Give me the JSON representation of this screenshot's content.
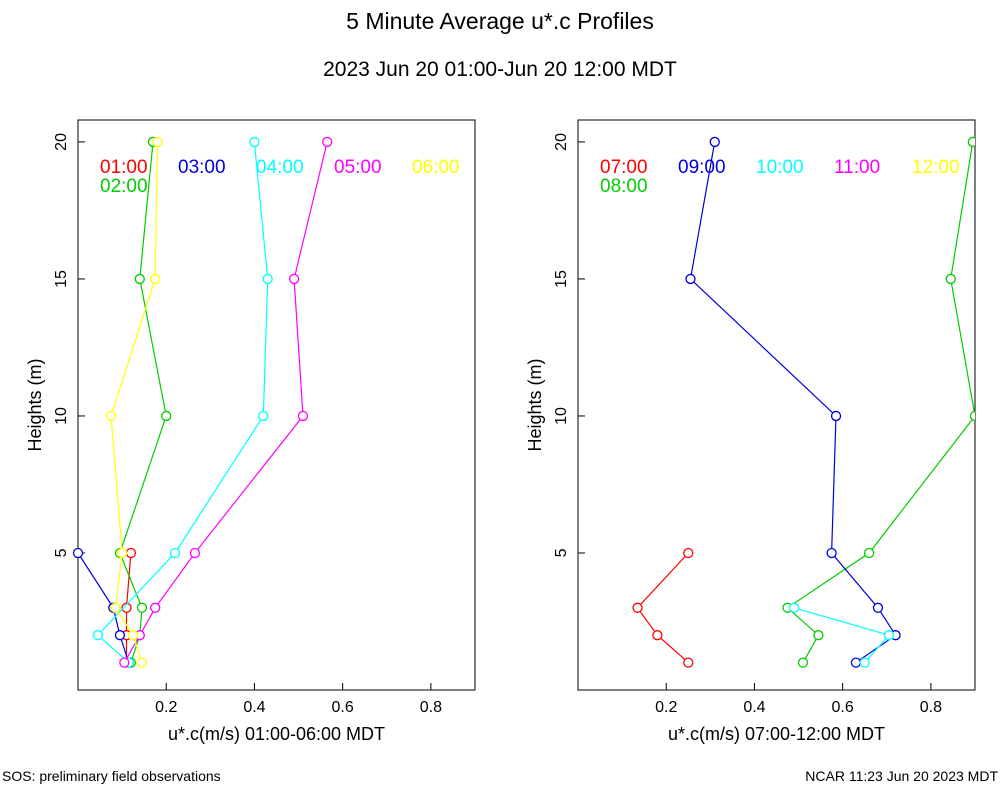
{
  "title": "5 Minute Average u*.c Profiles",
  "subtitle": "2023 Jun 20 01:00-Jun 20 12:00 MDT",
  "footer_left": "SOS: preliminary field observations",
  "footer_right": "NCAR 11:23 Jun 20 2023 MDT",
  "colors": {
    "red": "#ff0000",
    "green": "#00cc00",
    "blue": "#0000dd",
    "cyan": "#00ffff",
    "magenta": "#ff00ff",
    "yellow": "#ffff00"
  },
  "chart_data": [
    {
      "type": "line",
      "xlabel": "u*.c(m/s) 01:00-06:00 MDT",
      "ylabel": "Heights (m)",
      "xlim": [
        0,
        0.9
      ],
      "ylim": [
        0,
        20.8
      ],
      "xticks": [
        0.2,
        0.4,
        0.6,
        0.8
      ],
      "xtick_labels": [
        "0.2",
        "0.4",
        "0.6",
        "0.8"
      ],
      "yticks": [
        5,
        10,
        15,
        20
      ],
      "ytick_labels": [
        "5",
        "10",
        "15",
        "20"
      ],
      "legend": [
        {
          "label": "01:00",
          "color": "#ff0000",
          "row": 0,
          "col": 0
        },
        {
          "label": "02:00",
          "color": "#00cc00",
          "row": 1,
          "col": 0
        },
        {
          "label": "03:00",
          "color": "#0000dd",
          "row": 0,
          "col": 1
        },
        {
          "label": "04:00",
          "color": "#00ffff",
          "row": 0,
          "col": 2
        },
        {
          "label": "05:00",
          "color": "#ff00ff",
          "row": 0,
          "col": 3
        },
        {
          "label": "06:00",
          "color": "#ffff00",
          "row": 0,
          "col": 4
        }
      ],
      "series": [
        {
          "name": "01:00",
          "color": "#ff0000",
          "points": [
            [
              0.11,
              1
            ],
            [
              0.11,
              2
            ],
            [
              0.11,
              3
            ],
            [
              0.12,
              5
            ]
          ]
        },
        {
          "name": "02:00",
          "color": "#00cc00",
          "points": [
            [
              0.12,
              1
            ],
            [
              0.14,
              2
            ],
            [
              0.145,
              3
            ],
            [
              0.095,
              5
            ],
            [
              0.2,
              10
            ],
            [
              0.14,
              15
            ],
            [
              0.17,
              20
            ]
          ]
        },
        {
          "name": "03:00",
          "color": "#0000dd",
          "points": [
            [
              0.115,
              1
            ],
            [
              0.095,
              2
            ],
            [
              0.08,
              3
            ],
            [
              0.0,
              5
            ]
          ]
        },
        {
          "name": "04:00",
          "color": "#00ffff",
          "points": [
            [
              0.115,
              1
            ],
            [
              0.045,
              2
            ],
            [
              0.22,
              5
            ],
            [
              0.42,
              10
            ],
            [
              0.43,
              15
            ],
            [
              0.4,
              20
            ]
          ]
        },
        {
          "name": "05:00",
          "color": "#ff00ff",
          "points": [
            [
              0.105,
              1
            ],
            [
              0.14,
              2
            ],
            [
              0.175,
              3
            ],
            [
              0.265,
              5
            ],
            [
              0.51,
              10
            ],
            [
              0.49,
              15
            ],
            [
              0.565,
              20
            ]
          ]
        },
        {
          "name": "06:00",
          "color": "#ffff00",
          "points": [
            [
              0.145,
              1
            ],
            [
              0.125,
              2
            ],
            [
              0.085,
              3
            ],
            [
              0.1,
              5
            ],
            [
              0.075,
              10
            ],
            [
              0.175,
              15
            ],
            [
              0.18,
              20
            ]
          ]
        }
      ]
    },
    {
      "type": "line",
      "xlabel": "u*.c(m/s) 07:00-12:00 MDT",
      "ylabel": "Heights (m)",
      "xlim": [
        0,
        0.9
      ],
      "ylim": [
        0,
        20.8
      ],
      "xticks": [
        0.2,
        0.4,
        0.6,
        0.8
      ],
      "xtick_labels": [
        "0.2",
        "0.4",
        "0.6",
        "0.8"
      ],
      "yticks": [
        5,
        10,
        15,
        20
      ],
      "ytick_labels": [
        "5",
        "10",
        "15",
        "20"
      ],
      "legend": [
        {
          "label": "07:00",
          "color": "#ff0000",
          "row": 0,
          "col": 0
        },
        {
          "label": "08:00",
          "color": "#00cc00",
          "row": 1,
          "col": 0
        },
        {
          "label": "09:00",
          "color": "#0000dd",
          "row": 0,
          "col": 1
        },
        {
          "label": "10:00",
          "color": "#00ffff",
          "row": 0,
          "col": 2
        },
        {
          "label": "11:00",
          "color": "#ff00ff",
          "row": 0,
          "col": 3
        },
        {
          "label": "12:00",
          "color": "#ffff00",
          "row": 0,
          "col": 4
        }
      ],
      "series": [
        {
          "name": "07:00",
          "color": "#ff0000",
          "points": [
            [
              0.25,
              1
            ],
            [
              0.18,
              2
            ],
            [
              0.135,
              3
            ],
            [
              0.25,
              5
            ]
          ]
        },
        {
          "name": "08:00",
          "color": "#00cc00",
          "points": [
            [
              0.51,
              1
            ],
            [
              0.545,
              2
            ],
            [
              0.475,
              3
            ],
            [
              0.66,
              5
            ],
            [
              0.9,
              10
            ],
            [
              0.845,
              15
            ],
            [
              0.895,
              20
            ]
          ]
        },
        {
          "name": "09:00",
          "color": "#0000dd",
          "points": [
            [
              0.63,
              1
            ],
            [
              0.72,
              2
            ],
            [
              0.68,
              3
            ],
            [
              0.575,
              5
            ],
            [
              0.585,
              10
            ],
            [
              0.255,
              15
            ],
            [
              0.31,
              20
            ]
          ]
        },
        {
          "name": "10:00",
          "color": "#00ffff",
          "points": [
            [
              0.65,
              1
            ],
            [
              0.705,
              2
            ],
            [
              0.49,
              3
            ]
          ]
        },
        {
          "name": "11:00",
          "color": "#ff00ff",
          "points": []
        },
        {
          "name": "12:00",
          "color": "#ffff00",
          "points": []
        }
      ]
    }
  ]
}
